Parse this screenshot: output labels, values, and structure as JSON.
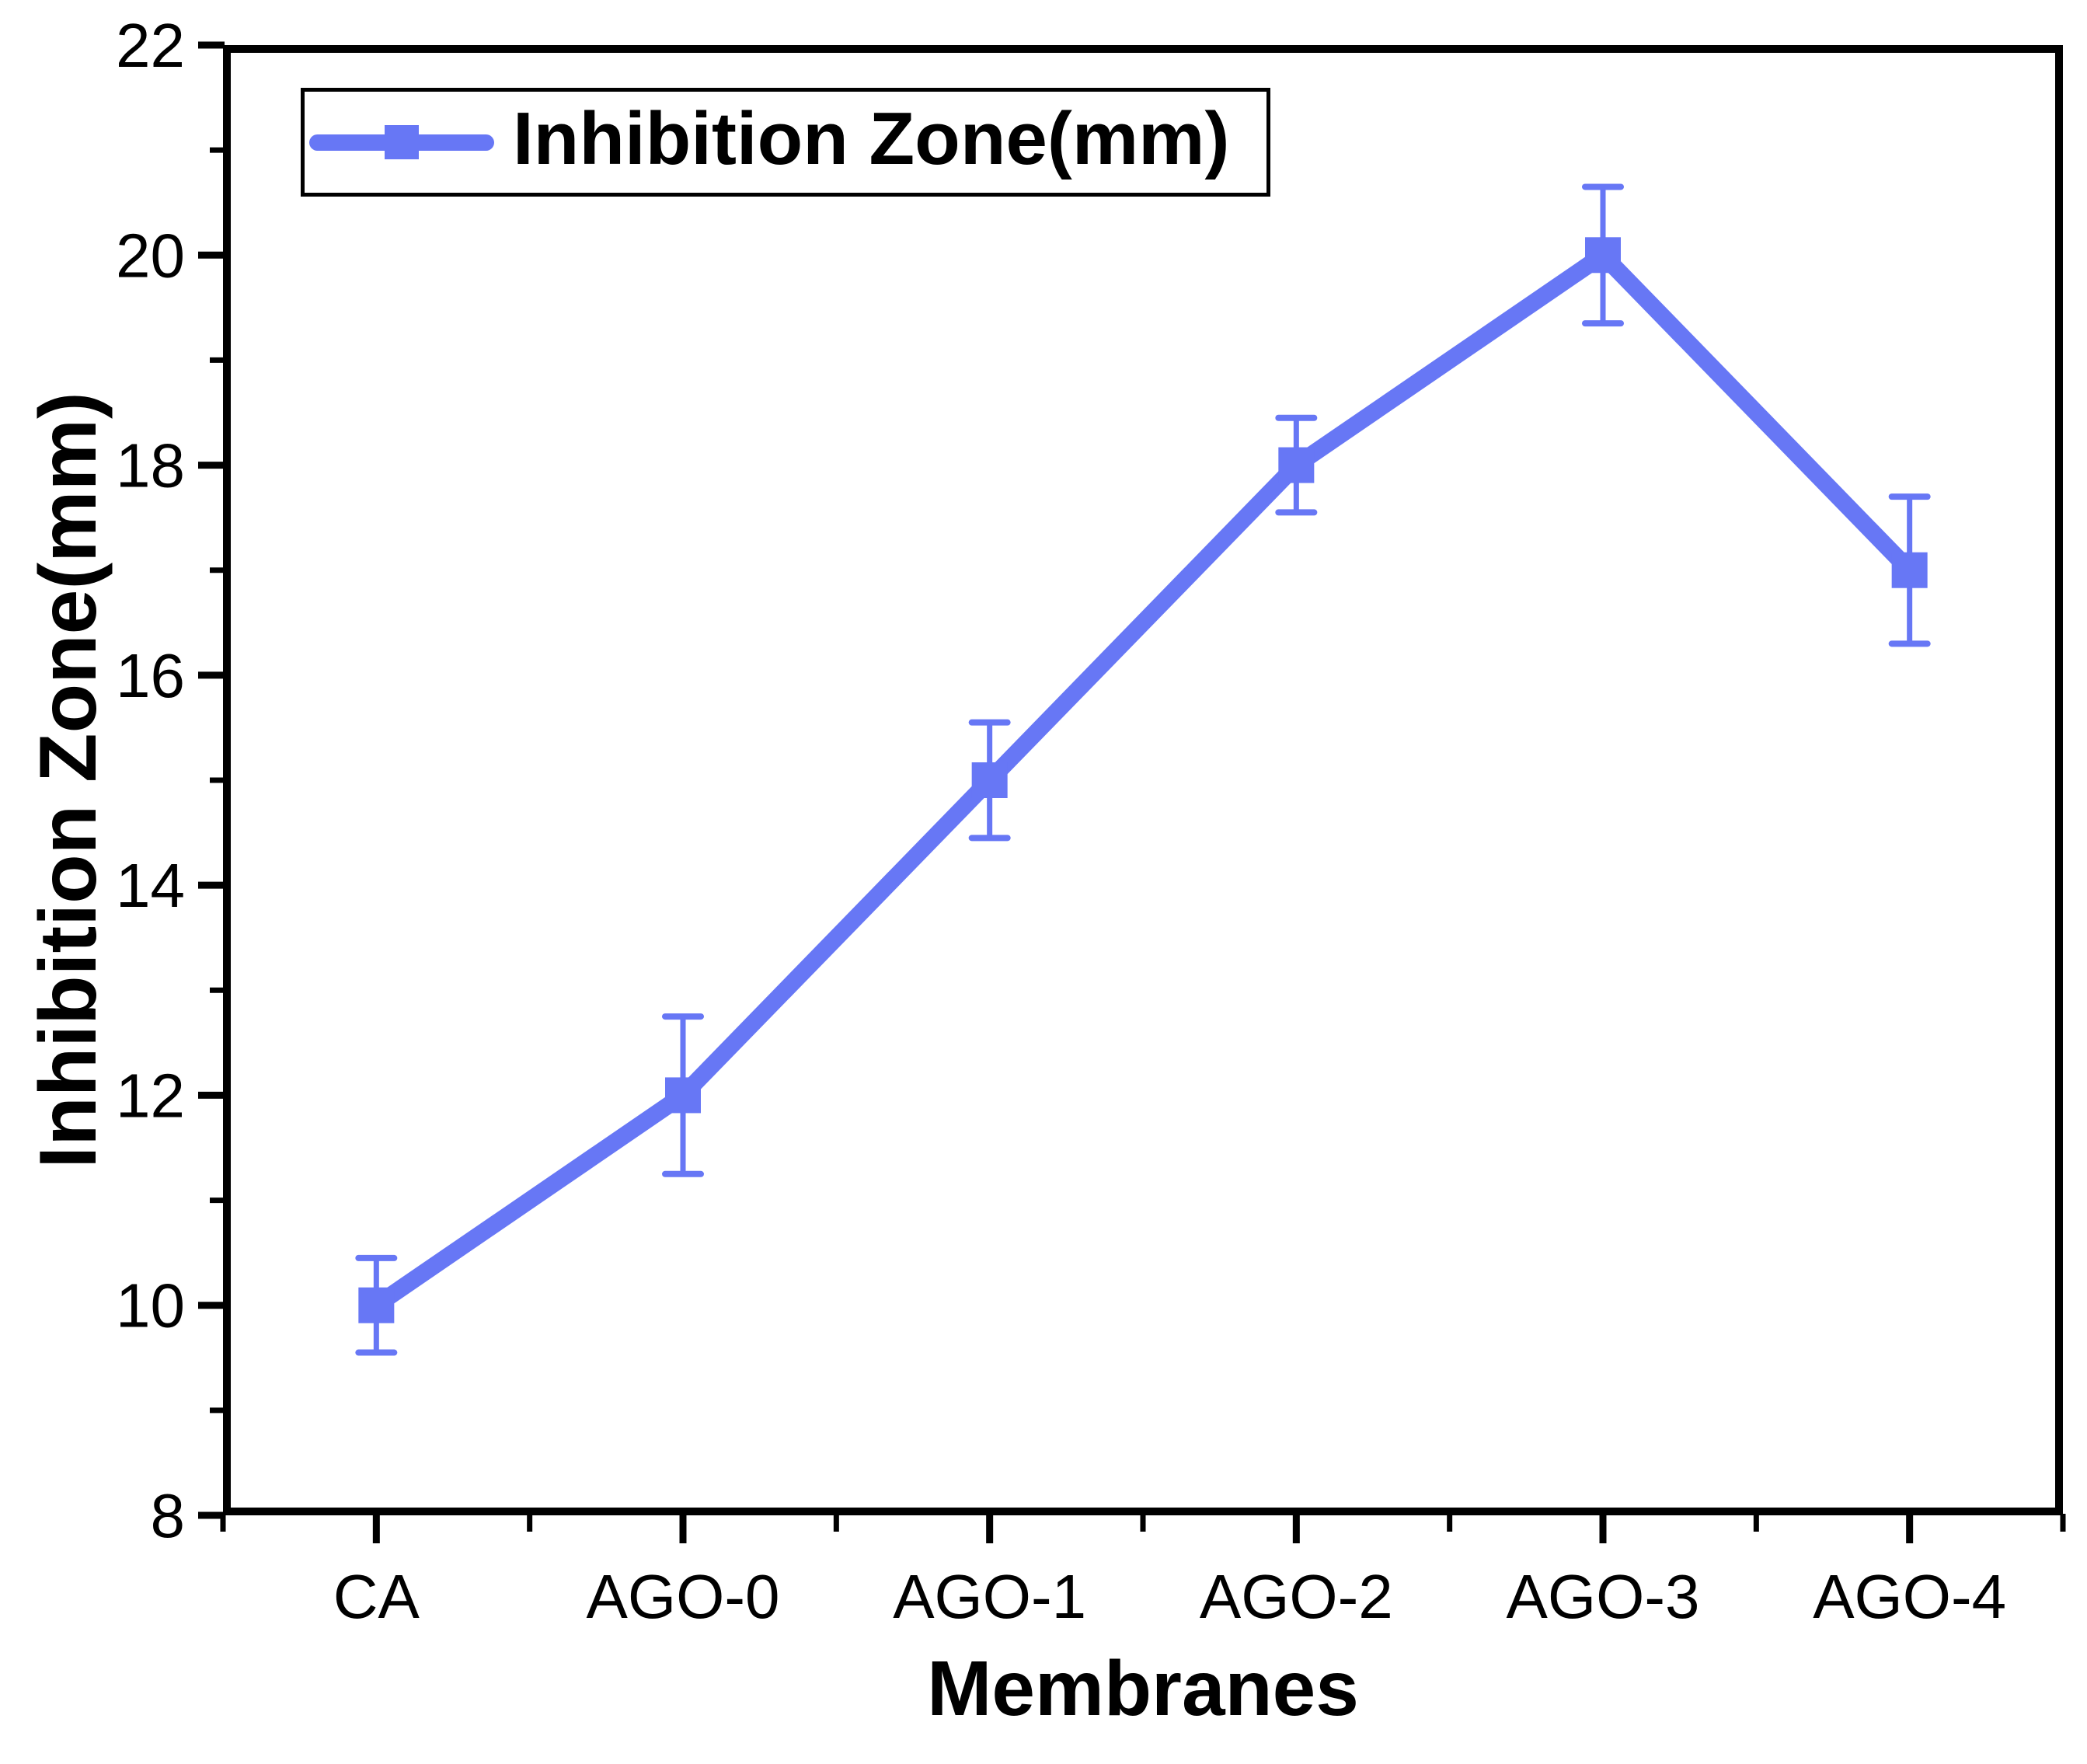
{
  "chart_data": {
    "type": "line",
    "title": "",
    "categories": [
      "CA",
      "AGO-0",
      "AGO-1",
      "AGO-2",
      "AGO-3",
      "AGO-4"
    ],
    "series": [
      {
        "name": "Inhibition Zone(mm)",
        "values": [
          10,
          12,
          15,
          18,
          20,
          17
        ],
        "error_bars": [
          0.45,
          0.75,
          0.55,
          0.45,
          0.65,
          0.7
        ],
        "color": "#6777f5",
        "marker": "square"
      }
    ],
    "xlabel": "Membranes",
    "ylabel": "Inhibition Zone(mm)",
    "ylim": [
      8,
      22
    ],
    "y_major_ticks": [
      8,
      10,
      12,
      14,
      16,
      18,
      20,
      22
    ],
    "y_minor_ticks": [
      9,
      11,
      13,
      15,
      17,
      19,
      21
    ],
    "grid": false,
    "legend_position": "top-left",
    "axis_color": "#000000",
    "background_color": "#ffffff"
  },
  "legend": {
    "label": "Inhibition Zone(mm)"
  },
  "x_axis": {
    "title": "Membranes"
  },
  "y_axis": {
    "title": "Inhibition Zone(mm)"
  }
}
